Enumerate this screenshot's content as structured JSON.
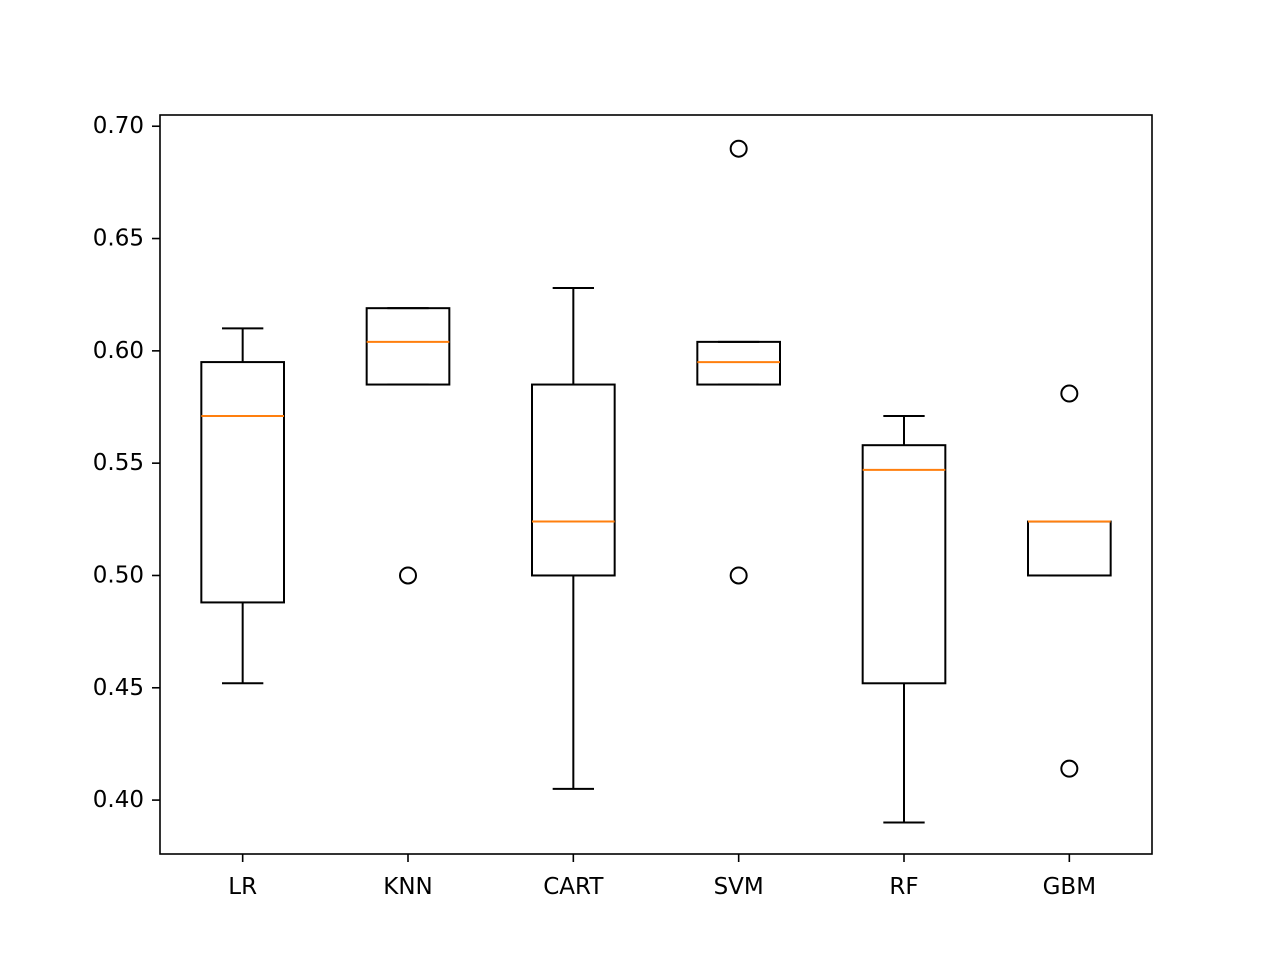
{
  "chart_data": {
    "type": "box",
    "title": "",
    "xlabel": "",
    "ylabel": "",
    "ylim": [
      0.376,
      0.705
    ],
    "yticks": [
      0.4,
      0.45,
      0.5,
      0.55,
      0.6,
      0.65,
      0.7
    ],
    "ytick_labels": [
      "0.40",
      "0.45",
      "0.50",
      "0.55",
      "0.60",
      "0.65",
      "0.70"
    ],
    "categories": [
      "LR",
      "KNN",
      "CART",
      "SVM",
      "RF",
      "GBM"
    ],
    "boxes": [
      {
        "name": "LR",
        "whisker_low": 0.452,
        "q1": 0.488,
        "median": 0.571,
        "q3": 0.595,
        "whisker_high": 0.61,
        "outliers": []
      },
      {
        "name": "KNN",
        "whisker_low": 0.585,
        "q1": 0.585,
        "median": 0.604,
        "q3": 0.619,
        "whisker_high": 0.619,
        "outliers": [
          0.5
        ]
      },
      {
        "name": "CART",
        "whisker_low": 0.405,
        "q1": 0.5,
        "median": 0.524,
        "q3": 0.585,
        "whisker_high": 0.628,
        "outliers": []
      },
      {
        "name": "SVM",
        "whisker_low": 0.585,
        "q1": 0.585,
        "median": 0.595,
        "q3": 0.604,
        "whisker_high": 0.604,
        "outliers": [
          0.69,
          0.5
        ]
      },
      {
        "name": "RF",
        "whisker_low": 0.39,
        "q1": 0.452,
        "median": 0.547,
        "q3": 0.558,
        "whisker_high": 0.571,
        "outliers": []
      },
      {
        "name": "GBM",
        "whisker_low": 0.5,
        "q1": 0.5,
        "median": 0.524,
        "q3": 0.524,
        "whisker_high": 0.524,
        "outliers": [
          0.581,
          0.414
        ]
      }
    ],
    "colors": {
      "box": "#000000",
      "median": "#ff7f0e",
      "outlier": "#000000",
      "background": "#ffffff"
    }
  }
}
